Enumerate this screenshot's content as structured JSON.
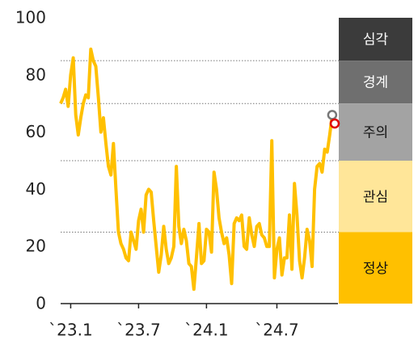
{
  "chart_data": {
    "type": "line",
    "categories": [
      null,
      null,
      null,
      null,
      "`23.1",
      null,
      null,
      null,
      null,
      null,
      null,
      null,
      null,
      null,
      null,
      null,
      null,
      null,
      null,
      null,
      null,
      null,
      null,
      null,
      null,
      null,
      null,
      null,
      null,
      null,
      null,
      "`23.7",
      null,
      null,
      null,
      null,
      null,
      null,
      null,
      null,
      null,
      null,
      null,
      null,
      null,
      null,
      null,
      null,
      null,
      null,
      null,
      null,
      null,
      null,
      null,
      null,
      null,
      null,
      "`24.1",
      null,
      null,
      null,
      null,
      null,
      null,
      null,
      null,
      null,
      null,
      null,
      null,
      null,
      null,
      null,
      null,
      null,
      null,
      null,
      null,
      null,
      null,
      null,
      null,
      null,
      null,
      null,
      "`24.7",
      null,
      null,
      null,
      null,
      null,
      null,
      null,
      null,
      null,
      null,
      null,
      null,
      null,
      null,
      null,
      null,
      null,
      null,
      null,
      null,
      null,
      null,
      null
    ],
    "values": [
      70,
      72,
      75,
      69,
      80,
      86,
      66,
      59,
      65,
      70,
      73,
      72,
      89,
      85,
      83,
      72,
      60,
      65,
      56,
      48,
      45,
      56,
      40,
      25,
      21,
      19,
      16,
      15,
      25,
      22,
      19,
      29,
      33,
      25,
      38,
      40,
      39,
      29,
      20,
      11,
      17,
      27,
      19,
      14,
      16,
      20,
      48,
      27,
      21,
      26,
      22,
      14,
      13,
      5,
      16,
      28,
      14,
      15,
      26,
      25,
      18,
      46,
      40,
      30,
      25,
      21,
      23,
      17,
      7,
      28,
      30,
      29,
      31,
      20,
      19,
      30,
      24,
      20,
      27,
      28,
      24,
      23,
      20,
      20,
      57,
      9,
      19,
      23,
      10,
      16,
      16,
      31,
      12,
      42,
      31,
      15,
      9,
      16,
      26,
      22,
      13,
      40,
      48,
      49,
      46,
      54,
      53,
      59,
      66,
      63
    ],
    "color": "#ffc000",
    "ylim": [
      0,
      100
    ],
    "yticks": [
      0,
      20,
      40,
      60,
      80,
      100
    ],
    "levels": [
      {
        "name": "심각",
        "from": 85,
        "to": 100,
        "color": "#3b3b3b",
        "text_color": "#ffffff"
      },
      {
        "name": "경계",
        "from": 70,
        "to": 85,
        "color": "#6f6f6f",
        "text_color": "#ffffff"
      },
      {
        "name": "주의",
        "from": 50,
        "to": 70,
        "color": "#a3a3a3",
        "text_color": "#111111"
      },
      {
        "name": "관심",
        "from": 25,
        "to": 50,
        "color": "#ffe699",
        "text_color": "#111111"
      },
      {
        "name": "정상",
        "from": 0,
        "to": 25,
        "color": "#ffc000",
        "text_color": "#111111"
      }
    ]
  }
}
